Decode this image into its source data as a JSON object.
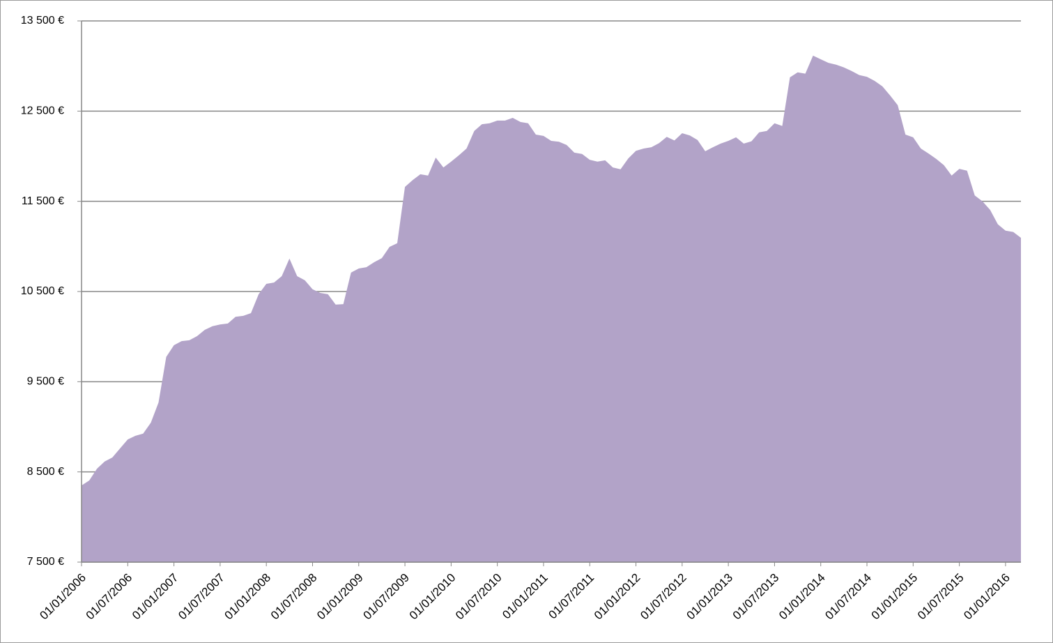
{
  "chart_data": {
    "type": "area",
    "categories": [
      "01/01/2006",
      null,
      null,
      null,
      null,
      null,
      "01/07/2006",
      null,
      null,
      null,
      null,
      null,
      "01/01/2007",
      null,
      null,
      null,
      null,
      null,
      "01/07/2007",
      null,
      null,
      null,
      null,
      null,
      "01/01/2008",
      null,
      null,
      null,
      null,
      null,
      "01/07/2008",
      null,
      null,
      null,
      null,
      null,
      "01/01/2009",
      null,
      null,
      null,
      null,
      null,
      "01/07/2009",
      null,
      null,
      null,
      null,
      null,
      "01/01/2010",
      null,
      null,
      null,
      null,
      null,
      "01/07/2010",
      null,
      null,
      null,
      null,
      null,
      "01/01/2011",
      null,
      null,
      null,
      null,
      null,
      "01/07/2011",
      null,
      null,
      null,
      null,
      null,
      "01/01/2012",
      null,
      null,
      null,
      null,
      null,
      "01/07/2012",
      null,
      null,
      null,
      null,
      null,
      "01/01/2013",
      null,
      null,
      null,
      null,
      null,
      "01/07/2013",
      null,
      null,
      null,
      null,
      null,
      "01/01/2014",
      null,
      null,
      null,
      null,
      null,
      "01/07/2014",
      null,
      null,
      null,
      null,
      null,
      "01/01/2015",
      null,
      null,
      null,
      null,
      null,
      "01/07/2015",
      null,
      null,
      null,
      null,
      null,
      "01/01/2016",
      null,
      null
    ],
    "values": [
      8350,
      8405,
      8535,
      8615,
      8660,
      8760,
      8860,
      8900,
      8925,
      9045,
      9270,
      9775,
      9905,
      9950,
      9960,
      10005,
      10075,
      10115,
      10135,
      10145,
      10220,
      10230,
      10260,
      10470,
      10585,
      10600,
      10670,
      10865,
      10670,
      10625,
      10525,
      10485,
      10470,
      10355,
      10360,
      10710,
      10755,
      10770,
      10825,
      10870,
      10995,
      11035,
      11660,
      11735,
      11800,
      11785,
      11985,
      11875,
      11940,
      12010,
      12085,
      12280,
      12355,
      12365,
      12395,
      12395,
      12425,
      12380,
      12365,
      12240,
      12225,
      12170,
      12160,
      12125,
      12040,
      12025,
      11960,
      11940,
      11955,
      11875,
      11855,
      11975,
      12060,
      12085,
      12100,
      12145,
      12215,
      12175,
      12255,
      12230,
      12180,
      12055,
      12100,
      12140,
      12170,
      12210,
      12140,
      12165,
      12265,
      12280,
      12365,
      12335,
      12875,
      12930,
      12915,
      13115,
      13075,
      13035,
      13015,
      12985,
      12945,
      12900,
      12880,
      12835,
      12775,
      12675,
      12565,
      12240,
      12210,
      12085,
      12030,
      11970,
      11900,
      11785,
      11860,
      11840,
      11565,
      11500,
      11405,
      11245,
      11175,
      11160,
      11095
    ],
    "color": "#b2a3c8",
    "ylim": [
      7500,
      13500
    ],
    "yticks": [
      {
        "value": 7500,
        "label": "7 500 €"
      },
      {
        "value": 8500,
        "label": "8 500 €"
      },
      {
        "value": 9500,
        "label": "9 500 €"
      },
      {
        "value": 10500,
        "label": "10 500 €"
      },
      {
        "value": 11500,
        "label": "11 500 €"
      },
      {
        "value": 12500,
        "label": "12 500 €"
      },
      {
        "value": 13500,
        "label": "13 500 €"
      }
    ],
    "grid": true
  }
}
